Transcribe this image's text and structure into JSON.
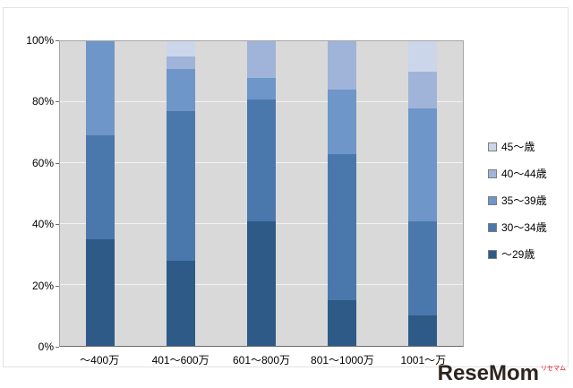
{
  "chart_data": {
    "type": "bar",
    "stacked": true,
    "percent": true,
    "title": "",
    "xlabel": "",
    "ylabel": "",
    "ylim": [
      0,
      100
    ],
    "gridlines": true,
    "legend_position": "right",
    "plot_background": "#d9d9d9",
    "categories": [
      "～400万",
      "401～600万",
      "601～800万",
      "801～1000万",
      "1001～万"
    ],
    "y_ticks": [
      "0%",
      "20%",
      "40%",
      "60%",
      "80%",
      "100%"
    ],
    "series": [
      {
        "name": "～29歳",
        "color": "#2e5a88",
        "values": [
          35,
          28,
          41,
          15,
          10
        ]
      },
      {
        "name": "30～34歳",
        "color": "#4a78ad",
        "values": [
          34,
          49,
          40,
          48,
          31
        ]
      },
      {
        "name": "35～39歳",
        "color": "#6e96c8",
        "values": [
          31,
          14,
          7,
          21,
          37
        ]
      },
      {
        "name": "40～44歳",
        "color": "#9fb4d8",
        "values": [
          0,
          4,
          12,
          16,
          12
        ]
      },
      {
        "name": "45～歳",
        "color": "#ccd6ea",
        "values": [
          0,
          5,
          0,
          0,
          10
        ]
      }
    ]
  },
  "watermark": {
    "text": "ReseMom",
    "sub": "リセマム"
  }
}
